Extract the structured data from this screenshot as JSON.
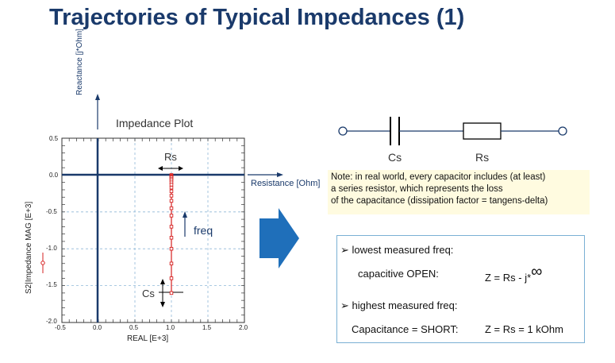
{
  "slide": {
    "title": "Trajectories of Typical Impedances (1)"
  },
  "plot": {
    "title": "Impedance Plot",
    "reactance_axis_label": "Reactance [j*Ohm]",
    "resistance_axis_label": "Resistance [Ohm]",
    "y_axis_label": "S2|Impedance  MAG [E+3]",
    "x_axis_label": "REAL [E+3]",
    "x_ticks": [
      "-0.5",
      "0.0",
      "0.5",
      "1.0",
      "1.5",
      "2.0"
    ],
    "y_ticks": [
      "0.5",
      "0.0",
      "-0.5",
      "-1.0",
      "-1.5",
      "-2.0"
    ],
    "rs_label": "Rs",
    "cs_label": "Cs",
    "freq_label": "freq",
    "trace_color": "#d62020",
    "axis_color": "#1a3a6b"
  },
  "chart_data": {
    "type": "scatter",
    "title": "Impedance Plot",
    "xlabel": "REAL [E+3]",
    "ylabel": "S2|Impedance  MAG [E+3]",
    "xlim": [
      -0.5,
      2.0
    ],
    "ylim": [
      -2.0,
      0.5
    ],
    "grid": true,
    "series": [
      {
        "x": [
          1.0,
          1.0,
          1.0,
          1.0,
          1.0,
          1.0,
          1.0,
          1.0,
          1.0,
          1.0,
          1.0,
          1.0,
          1.0,
          1.0,
          1.0,
          1.0,
          1.0,
          1.0,
          1.0,
          1.0
        ],
        "y": [
          0.0,
          -0.01,
          -0.02,
          -0.03,
          -0.05,
          -0.07,
          -0.1,
          -0.13,
          -0.17,
          -0.22,
          -0.28,
          -0.35,
          -0.45,
          -0.55,
          -0.7,
          -0.85,
          -1.0,
          -1.2,
          -1.4,
          -1.6
        ]
      }
    ]
  },
  "circuit": {
    "cs_label": "Cs",
    "rs_label": "Rs"
  },
  "note": {
    "line1": "Note:  in real world, every capacitor includes (at least)",
    "line2": "a series resistor, which represents the loss",
    "line3": "of the capacitance (dissipation factor = tangens-delta)"
  },
  "info": {
    "low_heading": "lowest measured freq:",
    "low_label": "capacitive OPEN:",
    "low_formula": "Z = Rs - j*",
    "infinity": "∞",
    "high_heading": "highest measured freq:",
    "high_label": "Capacitance = SHORT:",
    "high_formula": "Z = Rs = 1 kOhm",
    "bullet": "➢"
  }
}
